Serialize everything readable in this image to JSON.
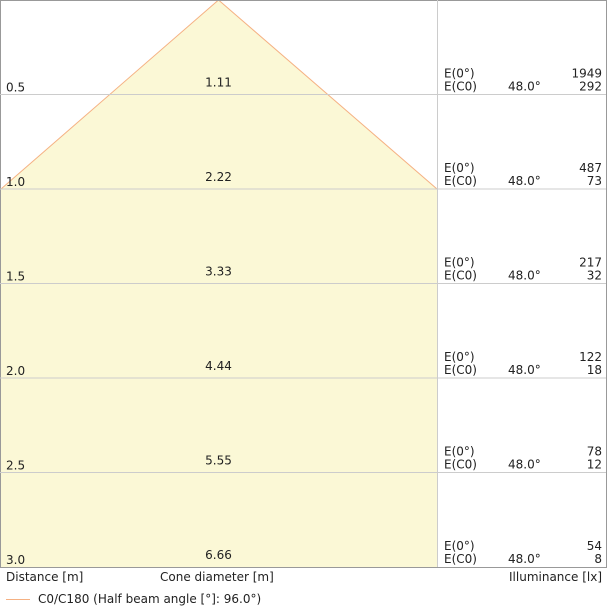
{
  "chart_data": {
    "type": "cone diagram",
    "distance_unit_label": "Distance [m]",
    "cone_label": "Cone diameter [m]",
    "illuminance_label": "Illuminance [lx]",
    "legend": "C0/C180 (Half beam angle [°]: 96.0°)",
    "half_beam_angle_deg": 96.0,
    "rows": [
      {
        "distance": "0.5",
        "diameter": "1.11",
        "e0_label": "E(0°)",
        "ec0_label": "E(C0)",
        "angle": "48.0°",
        "e0": "1949",
        "ec0": "292"
      },
      {
        "distance": "1.0",
        "diameter": "2.22",
        "e0_label": "E(0°)",
        "ec0_label": "E(C0)",
        "angle": "48.0°",
        "e0": "487",
        "ec0": "73"
      },
      {
        "distance": "1.5",
        "diameter": "3.33",
        "e0_label": "E(0°)",
        "ec0_label": "E(C0)",
        "angle": "48.0°",
        "e0": "217",
        "ec0": "32"
      },
      {
        "distance": "2.0",
        "diameter": "4.44",
        "e0_label": "E(0°)",
        "ec0_label": "E(C0)",
        "angle": "48.0°",
        "e0": "122",
        "ec0": "18"
      },
      {
        "distance": "2.5",
        "diameter": "5.55",
        "e0_label": "E(0°)",
        "ec0_label": "E(C0)",
        "angle": "48.0°",
        "e0": "78",
        "ec0": "12"
      },
      {
        "distance": "3.0",
        "diameter": "6.66",
        "e0_label": "E(0°)",
        "ec0_label": "E(C0)",
        "angle": "48.0°",
        "e0": "54",
        "ec0": "8"
      }
    ],
    "colors": {
      "cone_fill": "#fbf8d6",
      "cone_stroke": "#f5b183",
      "grid": "#cccccc",
      "border": "#999999"
    }
  }
}
